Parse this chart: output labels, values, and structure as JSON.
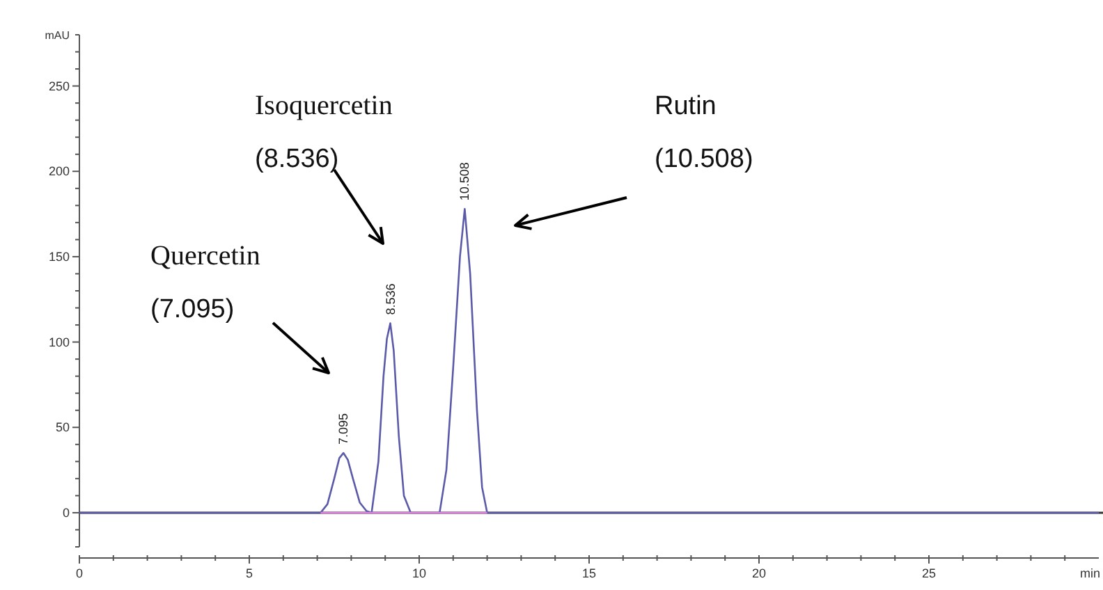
{
  "chart_data": {
    "type": "line",
    "ylabel": "mAU",
    "xlabel": "min",
    "xlim": [
      0,
      30
    ],
    "ylim": [
      -20,
      280
    ],
    "xticks": [
      0,
      {
        "value": 1,
        "label": null
      },
      {
        "value": 2,
        "label": null
      },
      {
        "value": 3,
        "label": null
      },
      {
        "value": 4,
        "label": null
      },
      5,
      {
        "value": 6,
        "label": null
      },
      {
        "value": 7,
        "label": null
      },
      {
        "value": 8,
        "label": null
      },
      {
        "value": 9,
        "label": null
      },
      10,
      {
        "value": 11,
        "label": null
      },
      {
        "value": 12,
        "label": null
      },
      {
        "value": 13,
        "label": null
      },
      {
        "value": 14,
        "label": null
      },
      15,
      {
        "value": 16,
        "label": null
      },
      {
        "value": 17,
        "label": null
      },
      {
        "value": 18,
        "label": null
      },
      {
        "value": 19,
        "label": null
      },
      20,
      {
        "value": 21,
        "label": null
      },
      {
        "value": 22,
        "label": null
      },
      {
        "value": 23,
        "label": null
      },
      {
        "value": 24,
        "label": null
      },
      25,
      {
        "value": 26,
        "label": null
      },
      {
        "value": 27,
        "label": null
      },
      {
        "value": 28,
        "label": null
      },
      {
        "value": 29,
        "label": null
      }
    ],
    "yticks": [
      {
        "value": -20,
        "label": null
      },
      {
        "value": -10,
        "label": null
      },
      0,
      {
        "value": 10,
        "label": null
      },
      {
        "value": 20,
        "label": null
      },
      {
        "value": 30,
        "label": null
      },
      {
        "value": 40,
        "label": null
      },
      50,
      {
        "value": 60,
        "label": null
      },
      {
        "value": 70,
        "label": null
      },
      {
        "value": 80,
        "label": null
      },
      {
        "value": 90,
        "label": null
      },
      100,
      {
        "value": 110,
        "label": null
      },
      {
        "value": 120,
        "label": null
      },
      {
        "value": 130,
        "label": null
      },
      {
        "value": 140,
        "label": null
      },
      150,
      {
        "value": 160,
        "label": null
      },
      {
        "value": 170,
        "label": null
      },
      {
        "value": 180,
        "label": null
      },
      {
        "value": 190,
        "label": null
      },
      200,
      {
        "value": 210,
        "label": null
      },
      {
        "value": 220,
        "label": null
      },
      {
        "value": 230,
        "label": null
      },
      {
        "value": 240,
        "label": null
      },
      250,
      {
        "value": 260,
        "label": null
      },
      {
        "value": 270,
        "label": null
      },
      {
        "value": 280,
        "label": null
      }
    ],
    "grid": false,
    "marker": "none",
    "line_style": "solid",
    "ref_lines": [
      {
        "axis": "y",
        "value": 0,
        "color": "#333333"
      }
    ],
    "series": [
      {
        "color": "#5a5aa8",
        "x": [
          0,
          7.1,
          7.3,
          7.5,
          7.65,
          7.77,
          7.9,
          8.05,
          8.25,
          8.45,
          8.6,
          8.8,
          8.95,
          9.05,
          9.15,
          9.25,
          9.4,
          9.55,
          9.75,
          10.6,
          10.8,
          11.0,
          11.2,
          11.34,
          11.5,
          11.7,
          11.85,
          12.0,
          30
        ],
        "values": [
          0,
          0,
          5,
          20,
          32,
          35,
          31,
          20,
          6,
          1,
          0,
          30,
          80,
          102,
          111,
          95,
          45,
          10,
          0,
          0,
          25,
          85,
          150,
          178,
          140,
          60,
          15,
          0,
          0
        ]
      },
      {
        "color": "#e080e0",
        "x": [
          7.1,
          12.0
        ],
        "values": [
          0,
          0
        ]
      }
    ],
    "annotations": [
      {
        "text": "7.095",
        "x": 7.77,
        "y": 35
      },
      {
        "text": "8.536",
        "x": 9.15,
        "y": 111
      },
      {
        "text": "10.508",
        "x": 11.34,
        "y": 178
      },
      "Quercetin\n(7.095)",
      "Isoquercetin\n(8.536)",
      "Rutin\n(10.508)"
    ]
  }
}
